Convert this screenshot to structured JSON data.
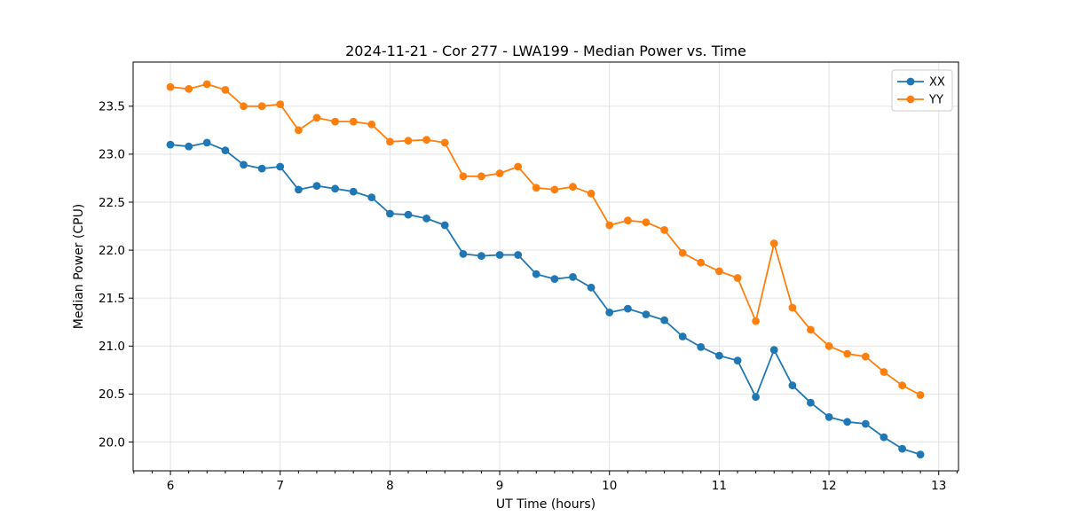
{
  "figure": {
    "title": "2024-11-21 - Cor 277 - LWA199 - Median Power vs. Time",
    "xlabel": "UT Time (hours)",
    "ylabel": "Median Power (CPU)"
  },
  "chart_data": {
    "type": "line",
    "title": "2024-11-21 - Cor 277 - LWA199 - Median Power vs. Time",
    "xlabel": "UT Time (hours)",
    "ylabel": "Median Power (CPU)",
    "x": [
      6.0,
      6.167,
      6.333,
      6.5,
      6.667,
      6.833,
      7.0,
      7.167,
      7.333,
      7.5,
      7.667,
      7.833,
      8.0,
      8.167,
      8.333,
      8.5,
      8.667,
      8.833,
      9.0,
      9.167,
      9.333,
      9.5,
      9.667,
      9.833,
      10.0,
      10.167,
      10.333,
      10.5,
      10.667,
      10.833,
      11.0,
      11.167,
      11.333,
      11.5,
      11.667,
      11.833,
      12.0,
      12.167,
      12.333,
      12.5,
      12.667,
      12.833
    ],
    "series": [
      {
        "name": "XX",
        "color": "#1f77b4",
        "values": [
          23.1,
          23.08,
          23.12,
          23.04,
          22.89,
          22.85,
          22.87,
          22.63,
          22.67,
          22.64,
          22.61,
          22.55,
          22.38,
          22.37,
          22.33,
          22.26,
          21.96,
          21.94,
          21.95,
          21.95,
          21.75,
          21.7,
          21.72,
          21.61,
          21.35,
          21.39,
          21.33,
          21.27,
          21.1,
          20.99,
          20.9,
          20.85,
          20.47,
          20.96,
          20.59,
          20.41,
          20.26,
          20.21,
          20.19,
          20.05,
          19.93,
          19.87
        ]
      },
      {
        "name": "YY",
        "color": "#ff7f0e",
        "values": [
          23.7,
          23.68,
          23.73,
          23.67,
          23.5,
          23.5,
          23.52,
          23.25,
          23.38,
          23.34,
          23.34,
          23.31,
          23.13,
          23.14,
          23.15,
          23.12,
          22.77,
          22.77,
          22.8,
          22.87,
          22.65,
          22.63,
          22.66,
          22.59,
          22.26,
          22.31,
          22.29,
          22.21,
          21.97,
          21.87,
          21.78,
          21.71,
          21.26,
          22.07,
          21.4,
          21.17,
          21.0,
          20.92,
          20.89,
          20.73,
          20.59,
          20.49
        ]
      }
    ],
    "xlim": [
      5.66,
      13.18
    ],
    "ylim": [
      19.7,
      23.96
    ],
    "xticks": [
      6,
      7,
      8,
      9,
      10,
      11,
      12,
      13
    ],
    "yticks": [
      20.0,
      20.5,
      21.0,
      21.5,
      22.0,
      22.5,
      23.0,
      23.5
    ],
    "x_minor_interval": 0.16667,
    "grid": true,
    "legend": {
      "position": "upper right",
      "entries": [
        "XX",
        "YY"
      ]
    },
    "marker": "o",
    "line_style": "solid"
  },
  "colors": {
    "series_blue": "#1f77b4",
    "series_orange": "#ff7f0e",
    "grid": "#e0e0e0",
    "spine": "#000000",
    "legend_border": "#cccccc",
    "background": "#ffffff"
  }
}
